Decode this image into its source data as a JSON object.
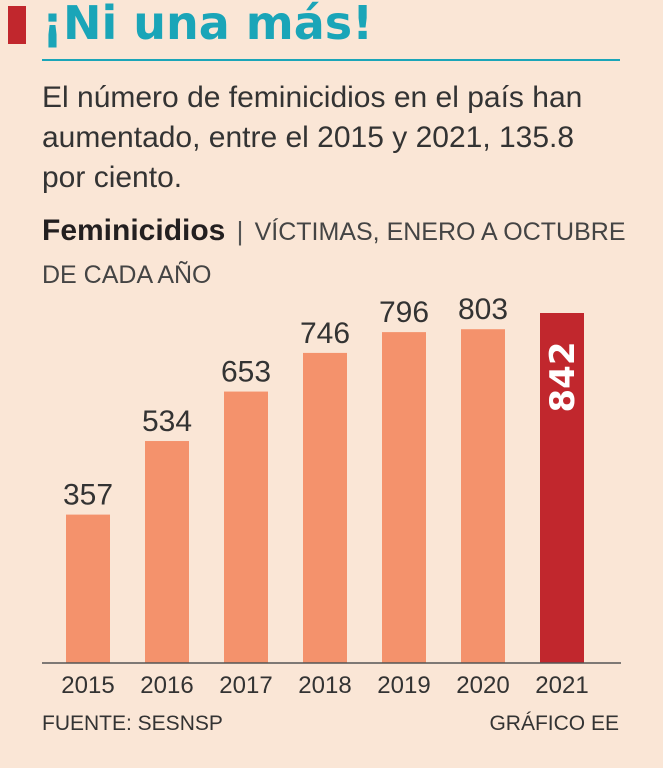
{
  "header": {
    "headline": "¡Ni una más!",
    "summary": "El número de feminicidios en el país han aumentado, entre el 2015 y 2021, 135.8 por ciento."
  },
  "chart_data": {
    "type": "bar",
    "title": "Feminicidios",
    "title_separator": "|",
    "subtitle": "VÍCTIMAS, ENERO A OCTUBRE DE CADA AÑO",
    "categories": [
      "2015",
      "2016",
      "2017",
      "2018",
      "2019",
      "2020",
      "2021"
    ],
    "values": [
      357,
      534,
      653,
      746,
      796,
      803,
      842
    ],
    "highlight_index": 6,
    "xlabel": "",
    "ylabel": "",
    "ylim": [
      0,
      842
    ],
    "grid": false,
    "legend": "none"
  },
  "colors": {
    "bar": "#f4926c",
    "highlight": "#c1272d",
    "headline": "#1aa5b8",
    "text": "#333333"
  },
  "footer": {
    "source": "FUENTE: SESNSP",
    "credit": "GRÁFICO EE"
  }
}
